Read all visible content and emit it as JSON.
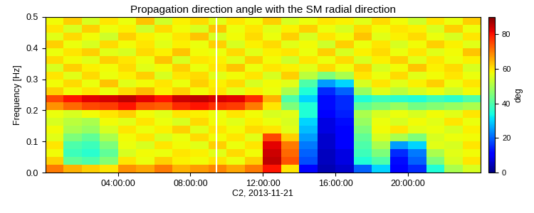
{
  "chart_data": {
    "type": "heatmap",
    "title": "Propagation direction angle with the SM radial direction",
    "x_label": "C2, 2013-11-21",
    "y_label": "Frequency [Hz]",
    "color": "jet",
    "xlim": [
      0,
      24
    ],
    "xticks": [
      {
        "value": 4,
        "label": "04:00:00"
      },
      {
        "value": 8,
        "label": "08:00:00"
      },
      {
        "value": 12,
        "label": "12:00:00"
      },
      {
        "value": 16,
        "label": "16:00:00"
      },
      {
        "value": 20,
        "label": "20:00:00"
      }
    ],
    "ylim": [
      0.0,
      0.5
    ],
    "yticks": [
      0.0,
      0.1,
      0.2,
      0.3,
      0.4,
      0.5
    ],
    "gap_lines": [
      9.45
    ],
    "colorbar": {
      "label": "deg",
      "range": [
        0,
        90
      ],
      "ticks": [
        0,
        20,
        40,
        60,
        80
      ]
    },
    "x_edges": [
      0,
      1,
      2,
      3,
      4,
      5,
      6,
      7,
      8,
      9,
      10,
      11,
      12,
      13,
      14,
      15,
      16,
      17,
      18,
      19,
      20,
      21,
      22,
      23,
      24
    ],
    "y_edges": [
      0.0,
      0.025,
      0.05,
      0.075,
      0.1,
      0.125,
      0.15,
      0.175,
      0.2,
      0.225,
      0.25,
      0.275,
      0.3,
      0.325,
      0.35,
      0.375,
      0.4,
      0.425,
      0.45,
      0.475,
      0.5
    ],
    "cells": [
      [
        70,
        65,
        62,
        60,
        68,
        66,
        70,
        65,
        67,
        69,
        66,
        70,
        80,
        60,
        10,
        4,
        6,
        20,
        30,
        10,
        15,
        35,
        50,
        55
      ],
      [
        62,
        42,
        40,
        46,
        60,
        57,
        62,
        59,
        58,
        60,
        57,
        62,
        85,
        74,
        18,
        5,
        8,
        35,
        40,
        12,
        20,
        45,
        55,
        60
      ],
      [
        58,
        38,
        36,
        42,
        55,
        58,
        57,
        60,
        59,
        56,
        61,
        58,
        84,
        72,
        20,
        5,
        8,
        38,
        45,
        15,
        22,
        50,
        56,
        58
      ],
      [
        60,
        40,
        38,
        45,
        57,
        55,
        60,
        58,
        56,
        62,
        57,
        60,
        82,
        70,
        22,
        6,
        10,
        40,
        50,
        25,
        30,
        56,
        55,
        60
      ],
      [
        56,
        45,
        42,
        50,
        58,
        60,
        55,
        57,
        61,
        58,
        60,
        56,
        75,
        62,
        25,
        6,
        10,
        42,
        55,
        50,
        45,
        55,
        57,
        58
      ],
      [
        58,
        50,
        48,
        55,
        60,
        57,
        59,
        62,
        56,
        60,
        58,
        61,
        60,
        56,
        28,
        8,
        10,
        45,
        58,
        60,
        56,
        57,
        55,
        59
      ],
      [
        55,
        52,
        50,
        58,
        56,
        60,
        57,
        55,
        61,
        58,
        56,
        59,
        57,
        55,
        30,
        8,
        12,
        48,
        57,
        55,
        58,
        56,
        60,
        57
      ],
      [
        57,
        55,
        58,
        60,
        62,
        58,
        56,
        60,
        59,
        57,
        60,
        58,
        55,
        56,
        35,
        10,
        14,
        50,
        55,
        57,
        55,
        58,
        56,
        60
      ],
      [
        68,
        72,
        75,
        76,
        80,
        74,
        73,
        78,
        80,
        77,
        76,
        70,
        60,
        45,
        35,
        12,
        15,
        42,
        45,
        48,
        44,
        46,
        48,
        50
      ],
      [
        75,
        80,
        82,
        83,
        85,
        82,
        80,
        84,
        85,
        83,
        82,
        78,
        65,
        40,
        30,
        12,
        15,
        35,
        38,
        36,
        35,
        38,
        36,
        40
      ],
      [
        62,
        58,
        60,
        57,
        61,
        64,
        59,
        62,
        58,
        60,
        56,
        59,
        57,
        50,
        35,
        15,
        20,
        48,
        56,
        52,
        55,
        57,
        54,
        58
      ],
      [
        58,
        61,
        57,
        63,
        56,
        58,
        60,
        57,
        62,
        59,
        61,
        55,
        58,
        56,
        40,
        25,
        30,
        55,
        60,
        56,
        59,
        62,
        57,
        60
      ],
      [
        60,
        56,
        61,
        57,
        59,
        62,
        55,
        60,
        61,
        56,
        58,
        60,
        55,
        62,
        52,
        45,
        50,
        60,
        57,
        61,
        56,
        58,
        60,
        57
      ],
      [
        55,
        62,
        59,
        58,
        61,
        56,
        58,
        62,
        57,
        60,
        63,
        57,
        60,
        59,
        56,
        61,
        57,
        62,
        55,
        58,
        63,
        59,
        61,
        55
      ],
      [
        61,
        58,
        56,
        62,
        60,
        57,
        63,
        55,
        60,
        59,
        56,
        62,
        58,
        54,
        60,
        57,
        61,
        55,
        59,
        62,
        56,
        60,
        57,
        59
      ],
      [
        57,
        60,
        62,
        56,
        55,
        61,
        59,
        63,
        58,
        57,
        61,
        56,
        59,
        60,
        57,
        62,
        55,
        59,
        61,
        57,
        60,
        56,
        58,
        63
      ],
      [
        62,
        57,
        55,
        61,
        58,
        60,
        56,
        59,
        57,
        62,
        55,
        59,
        61,
        56,
        58,
        54,
        62,
        57,
        60,
        55,
        58,
        62,
        59,
        56
      ],
      [
        56,
        61,
        58,
        54,
        62,
        59,
        57,
        60,
        63,
        55,
        58,
        61,
        57,
        62,
        55,
        60,
        58,
        63,
        56,
        59,
        61,
        57,
        55,
        60
      ],
      [
        60,
        55,
        62,
        57,
        59,
        54,
        61,
        58,
        55,
        63,
        57,
        60,
        56,
        59,
        62,
        57,
        55,
        61,
        58,
        60,
        59,
        55,
        62,
        57
      ],
      [
        58,
        62,
        55,
        60,
        57,
        63,
        54,
        59,
        61,
        56,
        60,
        58,
        62,
        55,
        57,
        60,
        59,
        56,
        61,
        58,
        54,
        60,
        57,
        62
      ]
    ]
  }
}
